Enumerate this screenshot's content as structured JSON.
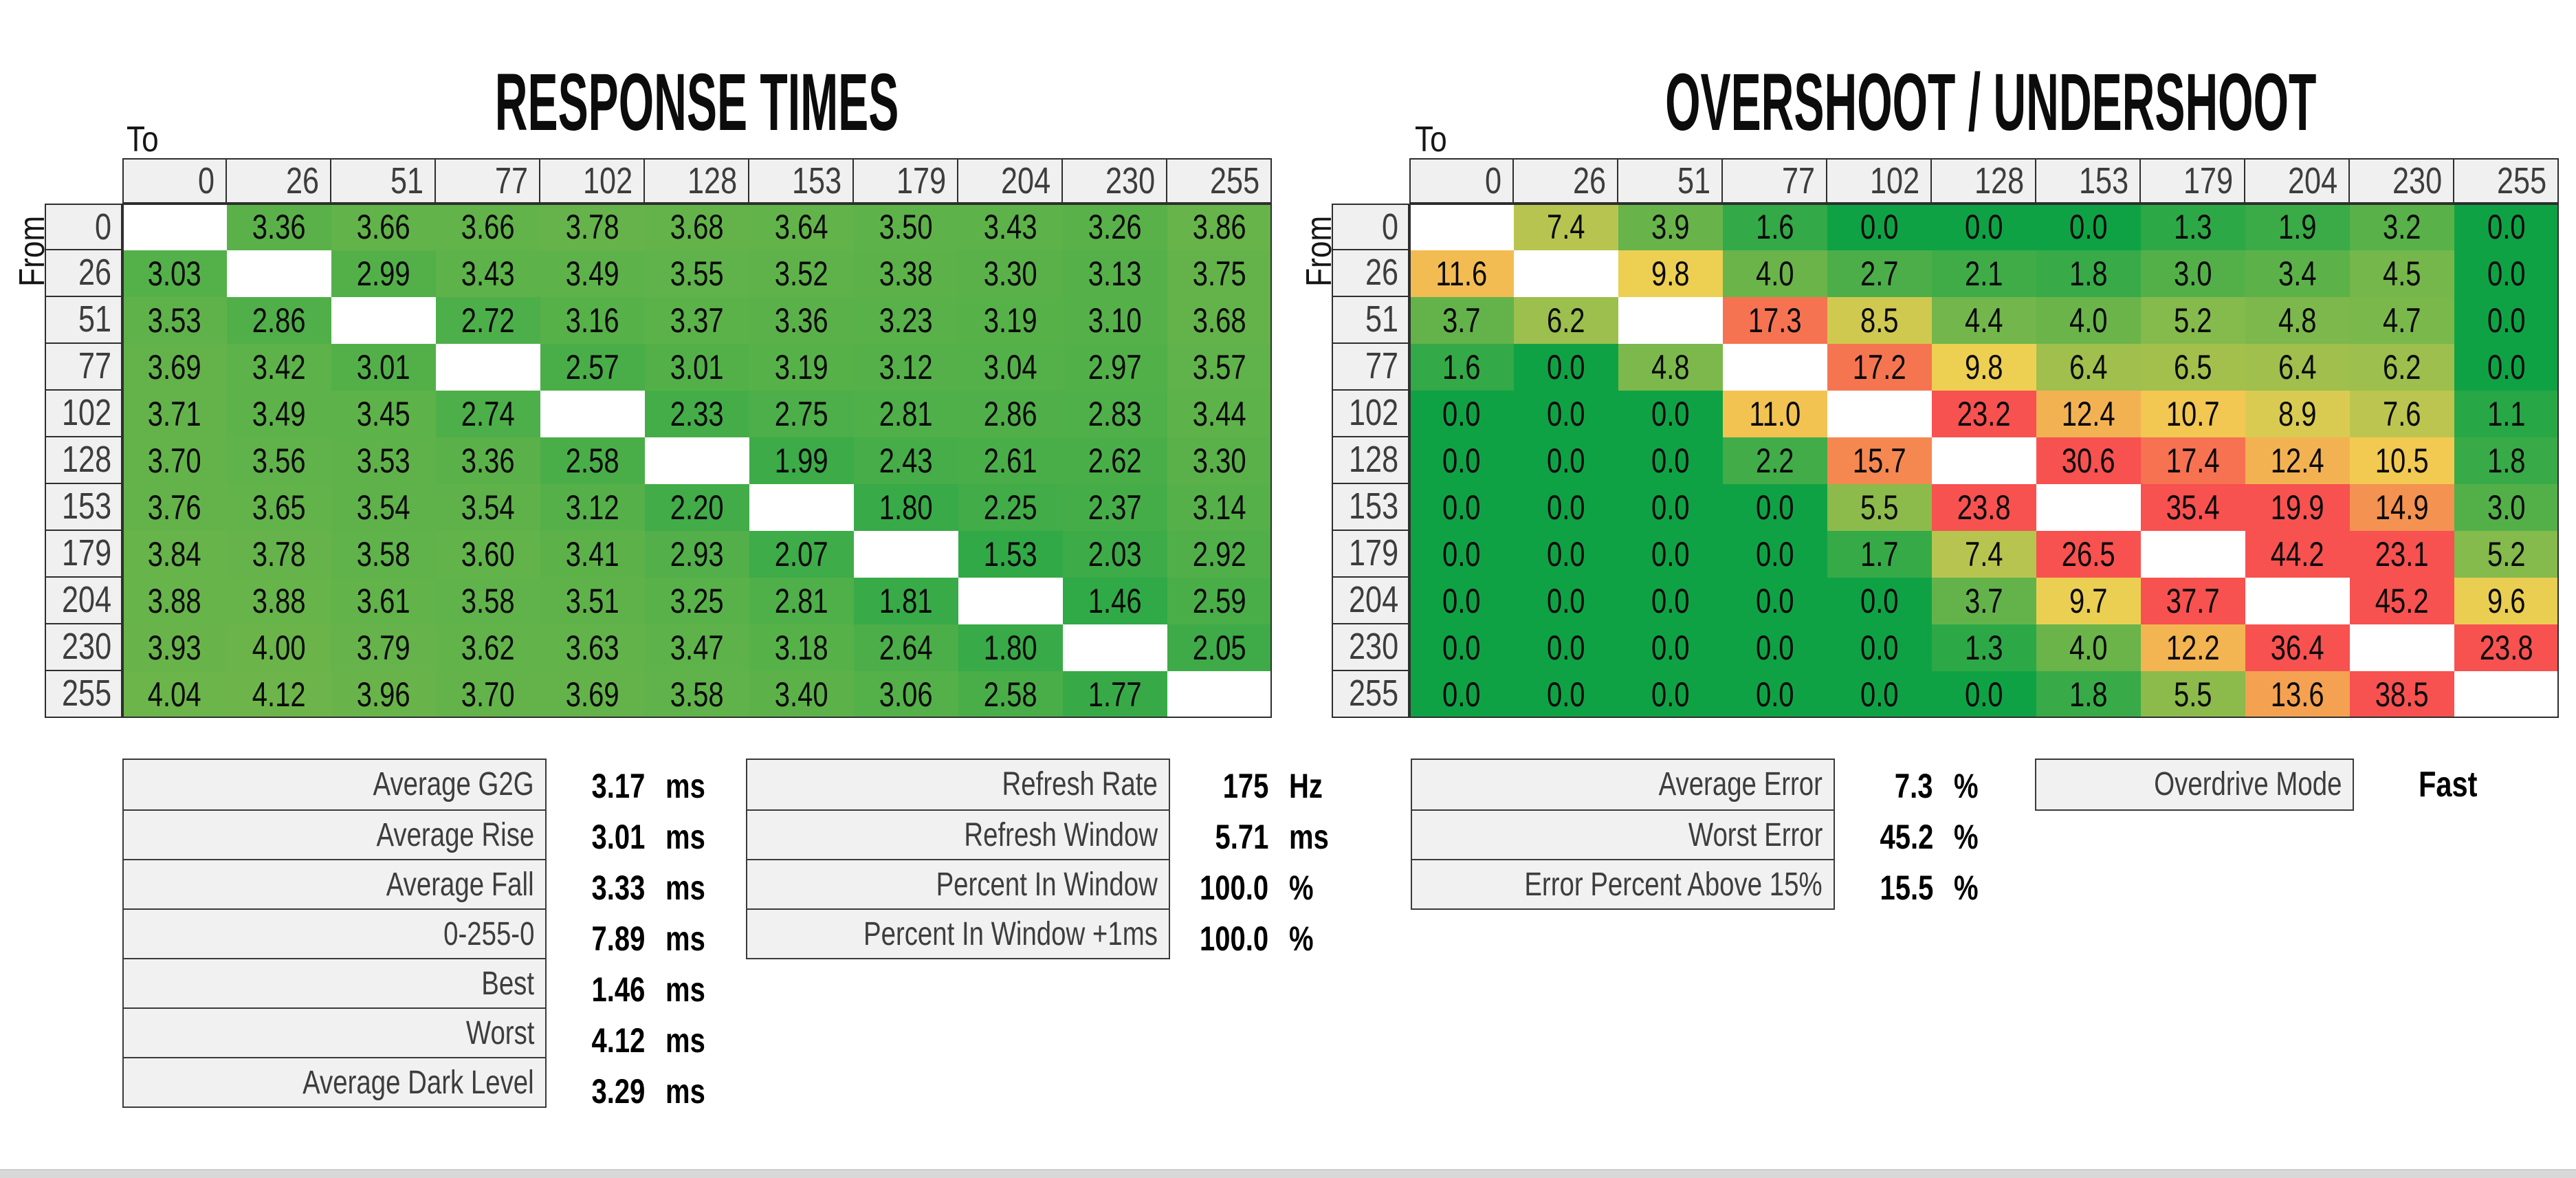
{
  "page": {
    "background": "#ffffff"
  },
  "heat_scale": {
    "stops": [
      {
        "v": 0,
        "color": "#0FA245"
      },
      {
        "v": 10,
        "color": "#F2D052"
      },
      {
        "v": 20,
        "color": "#F75150"
      }
    ],
    "blank_color": "#FFFFFF"
  },
  "levels": [
    "0",
    "26",
    "51",
    "77",
    "102",
    "128",
    "153",
    "179",
    "204",
    "230",
    "255"
  ],
  "response_times": {
    "title": "RESPONSE TIMES",
    "to_label": "To",
    "from_label": "From",
    "unit": "ms",
    "rows": [
      {
        "from": "0",
        "values": [
          null,
          "3.36",
          "3.66",
          "3.66",
          "3.78",
          "3.68",
          "3.64",
          "3.50",
          "3.43",
          "3.26",
          "3.86"
        ]
      },
      {
        "from": "26",
        "values": [
          "3.03",
          null,
          "2.99",
          "3.43",
          "3.49",
          "3.55",
          "3.52",
          "3.38",
          "3.30",
          "3.13",
          "3.75"
        ]
      },
      {
        "from": "51",
        "values": [
          "3.53",
          "2.86",
          null,
          "2.72",
          "3.16",
          "3.37",
          "3.36",
          "3.23",
          "3.19",
          "3.10",
          "3.68"
        ]
      },
      {
        "from": "77",
        "values": [
          "3.69",
          "3.42",
          "3.01",
          null,
          "2.57",
          "3.01",
          "3.19",
          "3.12",
          "3.04",
          "2.97",
          "3.57"
        ]
      },
      {
        "from": "102",
        "values": [
          "3.71",
          "3.49",
          "3.45",
          "2.74",
          null,
          "2.33",
          "2.75",
          "2.81",
          "2.86",
          "2.83",
          "3.44"
        ]
      },
      {
        "from": "128",
        "values": [
          "3.70",
          "3.56",
          "3.53",
          "3.36",
          "2.58",
          null,
          "1.99",
          "2.43",
          "2.61",
          "2.62",
          "3.30"
        ]
      },
      {
        "from": "153",
        "values": [
          "3.76",
          "3.65",
          "3.54",
          "3.54",
          "3.12",
          "2.20",
          null,
          "1.80",
          "2.25",
          "2.37",
          "3.14"
        ]
      },
      {
        "from": "179",
        "values": [
          "3.84",
          "3.78",
          "3.58",
          "3.60",
          "3.41",
          "2.93",
          "2.07",
          null,
          "1.53",
          "2.03",
          "2.92"
        ]
      },
      {
        "from": "204",
        "values": [
          "3.88",
          "3.88",
          "3.61",
          "3.58",
          "3.51",
          "3.25",
          "2.81",
          "1.81",
          null,
          "1.46",
          "2.59"
        ]
      },
      {
        "from": "230",
        "values": [
          "3.93",
          "4.00",
          "3.79",
          "3.62",
          "3.63",
          "3.47",
          "3.18",
          "2.64",
          "1.80",
          null,
          "2.05"
        ]
      },
      {
        "from": "255",
        "values": [
          "4.04",
          "4.12",
          "3.96",
          "3.70",
          "3.69",
          "3.58",
          "3.40",
          "3.06",
          "2.58",
          "1.77",
          null
        ]
      }
    ]
  },
  "overshoot": {
    "title": "OVERSHOOT / UNDERSHOOT",
    "to_label": "To",
    "from_label": "From",
    "unit": "%",
    "rows": [
      {
        "from": "0",
        "values": [
          null,
          "7.4",
          "3.9",
          "1.6",
          "0.0",
          "0.0",
          "0.0",
          "1.3",
          "1.9",
          "3.2",
          "0.0"
        ]
      },
      {
        "from": "26",
        "values": [
          "11.6",
          null,
          "9.8",
          "4.0",
          "2.7",
          "2.1",
          "1.8",
          "3.0",
          "3.4",
          "4.5",
          "0.0"
        ]
      },
      {
        "from": "51",
        "values": [
          "3.7",
          "6.2",
          null,
          "17.3",
          "8.5",
          "4.4",
          "4.0",
          "5.2",
          "4.8",
          "4.7",
          "0.0"
        ]
      },
      {
        "from": "77",
        "values": [
          "1.6",
          "0.0",
          "4.8",
          null,
          "17.2",
          "9.8",
          "6.4",
          "6.5",
          "6.4",
          "6.2",
          "0.0"
        ]
      },
      {
        "from": "102",
        "values": [
          "0.0",
          "0.0",
          "0.0",
          "11.0",
          null,
          "23.2",
          "12.4",
          "10.7",
          "8.9",
          "7.6",
          "1.1"
        ]
      },
      {
        "from": "128",
        "values": [
          "0.0",
          "0.0",
          "0.0",
          "2.2",
          "15.7",
          null,
          "30.6",
          "17.4",
          "12.4",
          "10.5",
          "1.8"
        ]
      },
      {
        "from": "153",
        "values": [
          "0.0",
          "0.0",
          "0.0",
          "0.0",
          "5.5",
          "23.8",
          null,
          "35.4",
          "19.9",
          "14.9",
          "3.0"
        ]
      },
      {
        "from": "179",
        "values": [
          "0.0",
          "0.0",
          "0.0",
          "0.0",
          "1.7",
          "7.4",
          "26.5",
          null,
          "44.2",
          "23.1",
          "5.2"
        ]
      },
      {
        "from": "204",
        "values": [
          "0.0",
          "0.0",
          "0.0",
          "0.0",
          "0.0",
          "3.7",
          "9.7",
          "37.7",
          null,
          "45.2",
          "9.6"
        ]
      },
      {
        "from": "230",
        "values": [
          "0.0",
          "0.0",
          "0.0",
          "0.0",
          "0.0",
          "1.3",
          "4.0",
          "12.2",
          "36.4",
          null,
          "23.8"
        ]
      },
      {
        "from": "255",
        "values": [
          "0.0",
          "0.0",
          "0.0",
          "0.0",
          "0.0",
          "0.0",
          "1.8",
          "5.5",
          "13.6",
          "38.5",
          null
        ]
      }
    ]
  },
  "stats_left": {
    "rows": [
      {
        "label": "Average G2G",
        "value": "3.17",
        "unit": "ms"
      },
      {
        "label": "Average Rise",
        "value": "3.01",
        "unit": "ms"
      },
      {
        "label": "Average Fall",
        "value": "3.33",
        "unit": "ms"
      },
      {
        "label": "0-255-0",
        "value": "7.89",
        "unit": "ms"
      },
      {
        "label": "Best",
        "value": "1.46",
        "unit": "ms"
      },
      {
        "label": "Worst",
        "value": "4.12",
        "unit": "ms"
      },
      {
        "label": "Average Dark Level",
        "value": "3.29",
        "unit": "ms"
      }
    ]
  },
  "stats_middle": {
    "rows": [
      {
        "label": "Refresh Rate",
        "value": "175",
        "unit": "Hz"
      },
      {
        "label": "Refresh Window",
        "value": "5.71",
        "unit": "ms"
      },
      {
        "label": "Percent In Window",
        "value": "100.0",
        "unit": "%"
      },
      {
        "label": "Percent In Window +1ms",
        "value": "100.0",
        "unit": "%"
      }
    ]
  },
  "stats_right": {
    "rows": [
      {
        "label": "Average Error",
        "value": "7.3",
        "unit": "%"
      },
      {
        "label": "Worst Error",
        "value": "45.2",
        "unit": "%"
      },
      {
        "label": "Error Percent Above 15%",
        "value": "15.5",
        "unit": "%"
      }
    ]
  },
  "overdrive": {
    "label": "Overdrive Mode",
    "value": "Fast"
  }
}
